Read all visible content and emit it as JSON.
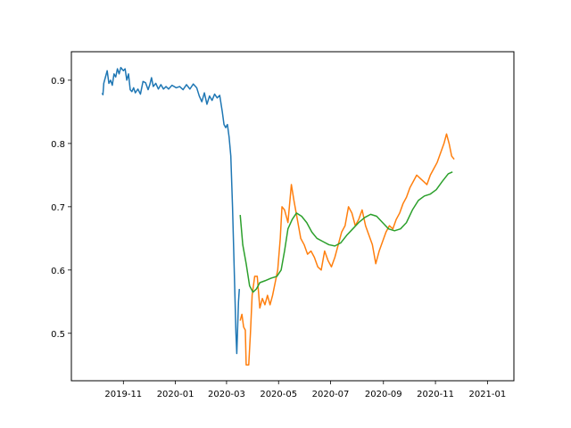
{
  "chart_data": {
    "type": "line",
    "title": "",
    "xlabel": "",
    "ylabel": "",
    "xlim": [
      "2019-09-01",
      "2021-02-01"
    ],
    "ylim": [
      0.425,
      0.945
    ],
    "x_ticks": [
      {
        "date": "2019-11-01",
        "label": "2019-11"
      },
      {
        "date": "2020-01-01",
        "label": "2020-01"
      },
      {
        "date": "2020-03-01",
        "label": "2020-03"
      },
      {
        "date": "2020-05-01",
        "label": "2020-05"
      },
      {
        "date": "2020-07-01",
        "label": "2020-07"
      },
      {
        "date": "2020-09-01",
        "label": "2020-09"
      },
      {
        "date": "2020-11-01",
        "label": "2020-11"
      },
      {
        "date": "2021-01-01",
        "label": "2021-01"
      }
    ],
    "y_ticks": [
      {
        "value": 0.5,
        "label": "0.5"
      },
      {
        "value": 0.6,
        "label": "0.6"
      },
      {
        "value": 0.7,
        "label": "0.7"
      },
      {
        "value": 0.8,
        "label": "0.8"
      },
      {
        "value": 0.9,
        "label": "0.9"
      }
    ],
    "grid": false,
    "series": [
      {
        "color": "#1f77b4",
        "points": [
          [
            "2019-10-07",
            0.88
          ],
          [
            "2019-10-08",
            0.877
          ],
          [
            "2019-10-09",
            0.895
          ],
          [
            "2019-10-11",
            0.905
          ],
          [
            "2019-10-13",
            0.915
          ],
          [
            "2019-10-15",
            0.895
          ],
          [
            "2019-10-17",
            0.9
          ],
          [
            "2019-10-19",
            0.892
          ],
          [
            "2019-10-21",
            0.91
          ],
          [
            "2019-10-23",
            0.905
          ],
          [
            "2019-10-25",
            0.918
          ],
          [
            "2019-10-27",
            0.91
          ],
          [
            "2019-10-29",
            0.92
          ],
          [
            "2019-11-01",
            0.915
          ],
          [
            "2019-11-03",
            0.918
          ],
          [
            "2019-11-05",
            0.9
          ],
          [
            "2019-11-07",
            0.91
          ],
          [
            "2019-11-09",
            0.885
          ],
          [
            "2019-11-11",
            0.882
          ],
          [
            "2019-11-13",
            0.888
          ],
          [
            "2019-11-15",
            0.88
          ],
          [
            "2019-11-18",
            0.886
          ],
          [
            "2019-11-21",
            0.878
          ],
          [
            "2019-11-24",
            0.898
          ],
          [
            "2019-11-27",
            0.896
          ],
          [
            "2019-11-30",
            0.885
          ],
          [
            "2019-12-02",
            0.893
          ],
          [
            "2019-12-04",
            0.904
          ],
          [
            "2019-12-06",
            0.89
          ],
          [
            "2019-12-09",
            0.895
          ],
          [
            "2019-12-12",
            0.886
          ],
          [
            "2019-12-15",
            0.893
          ],
          [
            "2019-12-18",
            0.886
          ],
          [
            "2019-12-21",
            0.89
          ],
          [
            "2019-12-24",
            0.886
          ],
          [
            "2019-12-28",
            0.892
          ],
          [
            "2020-01-02",
            0.888
          ],
          [
            "2020-01-06",
            0.89
          ],
          [
            "2020-01-10",
            0.885
          ],
          [
            "2020-01-14",
            0.893
          ],
          [
            "2020-01-18",
            0.886
          ],
          [
            "2020-01-22",
            0.894
          ],
          [
            "2020-01-26",
            0.888
          ],
          [
            "2020-01-29",
            0.875
          ],
          [
            "2020-02-01",
            0.866
          ],
          [
            "2020-02-04",
            0.88
          ],
          [
            "2020-02-07",
            0.862
          ],
          [
            "2020-02-10",
            0.875
          ],
          [
            "2020-02-13",
            0.868
          ],
          [
            "2020-02-16",
            0.878
          ],
          [
            "2020-02-19",
            0.872
          ],
          [
            "2020-02-22",
            0.876
          ],
          [
            "2020-02-25",
            0.85
          ],
          [
            "2020-02-27",
            0.83
          ],
          [
            "2020-02-29",
            0.825
          ],
          [
            "2020-03-02",
            0.83
          ],
          [
            "2020-03-04",
            0.81
          ],
          [
            "2020-03-06",
            0.78
          ],
          [
            "2020-03-08",
            0.7
          ],
          [
            "2020-03-10",
            0.6
          ],
          [
            "2020-03-12",
            0.5
          ],
          [
            "2020-03-13",
            0.468
          ],
          [
            "2020-03-15",
            0.55
          ],
          [
            "2020-03-16",
            0.57
          ]
        ]
      },
      {
        "color": "#ff7f0e",
        "points": [
          [
            "2020-03-17",
            0.52
          ],
          [
            "2020-03-19",
            0.53
          ],
          [
            "2020-03-21",
            0.51
          ],
          [
            "2020-03-23",
            0.505
          ],
          [
            "2020-03-24",
            0.45
          ],
          [
            "2020-03-27",
            0.45
          ],
          [
            "2020-03-29",
            0.5
          ],
          [
            "2020-03-31",
            0.56
          ],
          [
            "2020-04-03",
            0.59
          ],
          [
            "2020-04-06",
            0.59
          ],
          [
            "2020-04-09",
            0.54
          ],
          [
            "2020-04-12",
            0.555
          ],
          [
            "2020-04-15",
            0.545
          ],
          [
            "2020-04-18",
            0.56
          ],
          [
            "2020-04-21",
            0.545
          ],
          [
            "2020-04-24",
            0.56
          ],
          [
            "2020-04-27",
            0.58
          ],
          [
            "2020-04-30",
            0.6
          ],
          [
            "2020-05-03",
            0.65
          ],
          [
            "2020-05-05",
            0.7
          ],
          [
            "2020-05-08",
            0.695
          ],
          [
            "2020-05-12",
            0.675
          ],
          [
            "2020-05-16",
            0.735
          ],
          [
            "2020-05-19",
            0.71
          ],
          [
            "2020-05-23",
            0.68
          ],
          [
            "2020-05-27",
            0.65
          ],
          [
            "2020-05-31",
            0.64
          ],
          [
            "2020-06-04",
            0.625
          ],
          [
            "2020-06-08",
            0.63
          ],
          [
            "2020-06-12",
            0.62
          ],
          [
            "2020-06-16",
            0.605
          ],
          [
            "2020-06-20",
            0.6
          ],
          [
            "2020-06-24",
            0.63
          ],
          [
            "2020-06-28",
            0.615
          ],
          [
            "2020-07-02",
            0.605
          ],
          [
            "2020-07-06",
            0.62
          ],
          [
            "2020-07-10",
            0.64
          ],
          [
            "2020-07-14",
            0.66
          ],
          [
            "2020-07-18",
            0.67
          ],
          [
            "2020-07-22",
            0.7
          ],
          [
            "2020-07-26",
            0.69
          ],
          [
            "2020-07-30",
            0.67
          ],
          [
            "2020-08-03",
            0.68
          ],
          [
            "2020-08-07",
            0.695
          ],
          [
            "2020-08-11",
            0.67
          ],
          [
            "2020-08-15",
            0.655
          ],
          [
            "2020-08-19",
            0.64
          ],
          [
            "2020-08-23",
            0.61
          ],
          [
            "2020-08-27",
            0.63
          ],
          [
            "2020-08-31",
            0.645
          ],
          [
            "2020-09-04",
            0.66
          ],
          [
            "2020-09-08",
            0.67
          ],
          [
            "2020-09-12",
            0.665
          ],
          [
            "2020-09-16",
            0.68
          ],
          [
            "2020-09-20",
            0.69
          ],
          [
            "2020-09-24",
            0.705
          ],
          [
            "2020-09-28",
            0.715
          ],
          [
            "2020-10-02",
            0.73
          ],
          [
            "2020-10-06",
            0.74
          ],
          [
            "2020-10-10",
            0.75
          ],
          [
            "2020-10-14",
            0.745
          ],
          [
            "2020-10-18",
            0.74
          ],
          [
            "2020-10-22",
            0.735
          ],
          [
            "2020-10-26",
            0.75
          ],
          [
            "2020-10-30",
            0.76
          ],
          [
            "2020-11-03",
            0.77
          ],
          [
            "2020-11-07",
            0.785
          ],
          [
            "2020-11-11",
            0.8
          ],
          [
            "2020-11-14",
            0.815
          ],
          [
            "2020-11-17",
            0.8
          ],
          [
            "2020-11-20",
            0.78
          ],
          [
            "2020-11-23",
            0.775
          ]
        ]
      },
      {
        "color": "#2ca02c",
        "points": [
          [
            "2020-03-17",
            0.687
          ],
          [
            "2020-03-20",
            0.64
          ],
          [
            "2020-03-24",
            0.61
          ],
          [
            "2020-03-28",
            0.575
          ],
          [
            "2020-04-01",
            0.565
          ],
          [
            "2020-04-05",
            0.57
          ],
          [
            "2020-04-09",
            0.58
          ],
          [
            "2020-04-15",
            0.583
          ],
          [
            "2020-04-22",
            0.587
          ],
          [
            "2020-04-29",
            0.59
          ],
          [
            "2020-05-04",
            0.6
          ],
          [
            "2020-05-08",
            0.63
          ],
          [
            "2020-05-12",
            0.665
          ],
          [
            "2020-05-17",
            0.68
          ],
          [
            "2020-05-22",
            0.69
          ],
          [
            "2020-05-28",
            0.685
          ],
          [
            "2020-06-03",
            0.675
          ],
          [
            "2020-06-09",
            0.66
          ],
          [
            "2020-06-15",
            0.65
          ],
          [
            "2020-06-22",
            0.645
          ],
          [
            "2020-06-29",
            0.64
          ],
          [
            "2020-07-06",
            0.638
          ],
          [
            "2020-07-13",
            0.643
          ],
          [
            "2020-07-20",
            0.655
          ],
          [
            "2020-07-27",
            0.665
          ],
          [
            "2020-08-03",
            0.675
          ],
          [
            "2020-08-10",
            0.683
          ],
          [
            "2020-08-17",
            0.688
          ],
          [
            "2020-08-24",
            0.685
          ],
          [
            "2020-08-31",
            0.675
          ],
          [
            "2020-09-07",
            0.665
          ],
          [
            "2020-09-14",
            0.662
          ],
          [
            "2020-09-21",
            0.665
          ],
          [
            "2020-09-28",
            0.675
          ],
          [
            "2020-10-05",
            0.695
          ],
          [
            "2020-10-12",
            0.71
          ],
          [
            "2020-10-19",
            0.717
          ],
          [
            "2020-10-26",
            0.72
          ],
          [
            "2020-11-02",
            0.727
          ],
          [
            "2020-11-09",
            0.74
          ],
          [
            "2020-11-16",
            0.752
          ],
          [
            "2020-11-21",
            0.755
          ]
        ]
      }
    ]
  }
}
